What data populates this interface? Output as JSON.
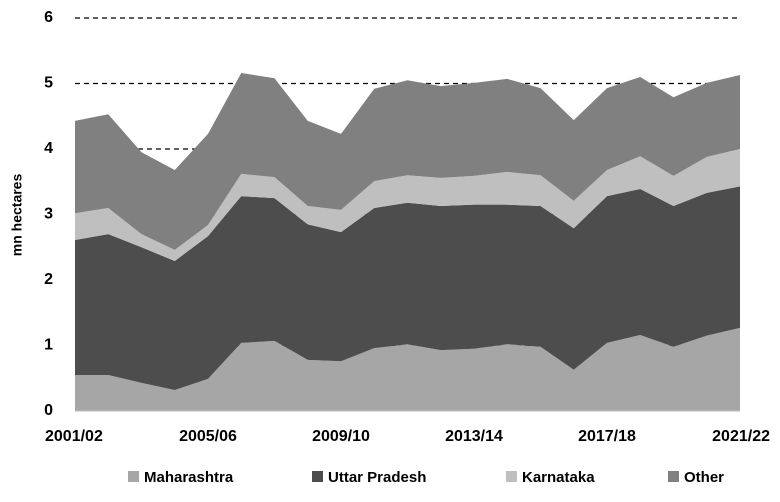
{
  "chart_data": {
    "type": "stacked_area",
    "y_label": "mn hectares",
    "categories": [
      "2001/02",
      null,
      null,
      null,
      "2005/06",
      null,
      null,
      null,
      "2009/10",
      null,
      null,
      null,
      "2013/14",
      null,
      null,
      null,
      "2017/18",
      null,
      null,
      null,
      "2021/22"
    ],
    "series": [
      {
        "name": "Maharashtra",
        "color": "#a6a6a6",
        "values": [
          0.55,
          0.55,
          0.43,
          0.32,
          0.49,
          1.04,
          1.07,
          0.78,
          0.76,
          0.96,
          1.02,
          0.93,
          0.95,
          1.02,
          0.98,
          0.63,
          1.04,
          1.16,
          0.98,
          1.15,
          1.27
        ]
      },
      {
        "name": "Uttar Pradesh",
        "color": "#4d4d4d",
        "values": [
          2.06,
          2.15,
          2.07,
          1.97,
          2.18,
          2.24,
          2.18,
          2.07,
          1.97,
          2.14,
          2.16,
          2.2,
          2.2,
          2.13,
          2.15,
          2.16,
          2.24,
          2.23,
          2.15,
          2.18,
          2.16
        ]
      },
      {
        "name": "Karnataka",
        "color": "#bfbfbf",
        "values": [
          0.41,
          0.4,
          0.2,
          0.17,
          0.17,
          0.34,
          0.32,
          0.28,
          0.34,
          0.41,
          0.42,
          0.43,
          0.44,
          0.5,
          0.47,
          0.42,
          0.4,
          0.5,
          0.46,
          0.55,
          0.57
        ]
      },
      {
        "name": "Other",
        "color": "#808080",
        "values": [
          1.41,
          1.43,
          1.25,
          1.22,
          1.39,
          1.54,
          1.51,
          1.3,
          1.16,
          1.41,
          1.45,
          1.4,
          1.42,
          1.42,
          1.33,
          1.23,
          1.25,
          1.21,
          1.2,
          1.13,
          1.13
        ]
      }
    ],
    "ylim": [
      0,
      6
    ],
    "yticks": [
      0,
      1,
      2,
      3,
      4,
      5,
      6
    ],
    "grid": true,
    "legend": "bottom"
  }
}
